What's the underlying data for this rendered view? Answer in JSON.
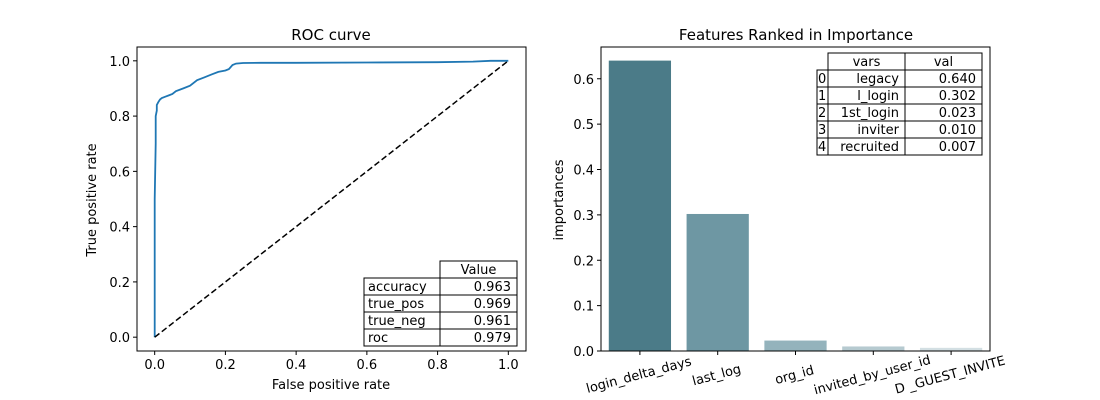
{
  "chart_data": [
    {
      "type": "line",
      "title": "ROC curve",
      "xlabel": "False positive rate",
      "ylabel": "True positive rate",
      "xlim": [
        -0.05,
        1.05
      ],
      "ylim": [
        -0.05,
        1.05
      ],
      "xticks": [
        "0.0",
        "0.2",
        "0.4",
        "0.6",
        "0.8",
        "1.0"
      ],
      "yticks": [
        "0.0",
        "0.2",
        "0.4",
        "0.6",
        "0.8",
        "1.0"
      ],
      "grid": false,
      "series": [
        {
          "color": "#1f77b4",
          "style": "solid",
          "x": [
            0.0,
            0.0,
            0.003,
            0.003,
            0.006,
            0.006,
            0.01,
            0.015,
            0.02,
            0.03,
            0.04,
            0.05,
            0.06,
            0.08,
            0.1,
            0.12,
            0.14,
            0.16,
            0.18,
            0.2,
            0.21,
            0.22,
            0.23,
            0.25,
            0.3,
            0.4,
            0.6,
            0.8,
            0.9,
            0.95,
            1.0
          ],
          "y": [
            0.0,
            0.5,
            0.7,
            0.8,
            0.82,
            0.84,
            0.85,
            0.86,
            0.865,
            0.87,
            0.875,
            0.88,
            0.89,
            0.9,
            0.91,
            0.93,
            0.94,
            0.95,
            0.96,
            0.965,
            0.97,
            0.985,
            0.99,
            0.992,
            0.993,
            0.993,
            0.994,
            0.995,
            0.997,
            1.0,
            1.0
          ]
        },
        {
          "color": "#000000",
          "style": "dashed",
          "x": [
            0,
            1
          ],
          "y": [
            0,
            1
          ]
        }
      ],
      "table": {
        "header": "Value",
        "rows": [
          {
            "label": "accuracy",
            "value": "0.963"
          },
          {
            "label": "true_pos",
            "value": "0.969"
          },
          {
            "label": "true_neg",
            "value": "0.961"
          },
          {
            "label": "roc",
            "value": "0.979"
          }
        ]
      }
    },
    {
      "type": "bar",
      "title": "Features Ranked in Importance",
      "xlabel": "",
      "ylabel": "importances",
      "ylim": [
        0,
        0.67
      ],
      "yticks": [
        "0.0",
        "0.1",
        "0.2",
        "0.3",
        "0.4",
        "0.5",
        "0.6"
      ],
      "categories": [
        "login_delta_days",
        "last_log",
        "org_id",
        "invited_by_user_id",
        "D _GUEST_INVITE"
      ],
      "values": [
        0.64,
        0.302,
        0.023,
        0.01,
        0.007
      ],
      "colors": [
        "#4b7b88",
        "#6e97a3",
        "#94b3bc",
        "#b6cad0",
        "#d3dfe3"
      ],
      "table": {
        "headers": [
          "vars",
          "val"
        ],
        "rows": [
          {
            "index": "0",
            "var": "legacy",
            "val": "0.640"
          },
          {
            "index": "1",
            "var": "l_login",
            "val": "0.302"
          },
          {
            "index": "2",
            "var": "1st_login",
            "val": "0.023"
          },
          {
            "index": "3",
            "var": "inviter",
            "val": "0.010"
          },
          {
            "index": "4",
            "var": "recruited",
            "val": "0.007"
          }
        ]
      }
    }
  ]
}
